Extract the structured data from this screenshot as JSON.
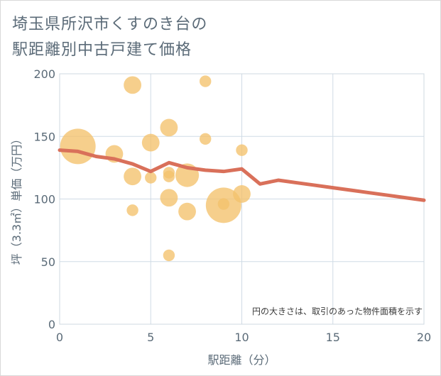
{
  "title": {
    "line1": "埼玉県所沢市くすのき台の",
    "line2": "駅距離別中古戸建て価格"
  },
  "note": "円の大きさは、取引のあった物件面積を示す",
  "colors": {
    "bubble": "#f3c26b",
    "line": "#d9705a",
    "grid": "#d0dbe5",
    "text": "#5b6b78"
  },
  "chart_data": {
    "type": "scatter",
    "xlabel": "駅距離（分）",
    "ylabel": "坪（3.3㎡）単価（万円）",
    "xlim": [
      0,
      20
    ],
    "ylim": [
      0,
      200
    ],
    "xticks": [
      0,
      5,
      10,
      15,
      20
    ],
    "yticks": [
      0,
      50,
      100,
      150,
      200
    ],
    "grid": true,
    "bubbles": [
      {
        "x": 1,
        "y": 142,
        "size": 5
      },
      {
        "x": 3,
        "y": 136,
        "size": 2
      },
      {
        "x": 4,
        "y": 191,
        "size": 2
      },
      {
        "x": 4,
        "y": 118,
        "size": 2
      },
      {
        "x": 4,
        "y": 91,
        "size": 1
      },
      {
        "x": 5,
        "y": 145,
        "size": 2
      },
      {
        "x": 5,
        "y": 117,
        "size": 1
      },
      {
        "x": 6,
        "y": 157,
        "size": 2
      },
      {
        "x": 6,
        "y": 121,
        "size": 1
      },
      {
        "x": 6,
        "y": 118,
        "size": 1
      },
      {
        "x": 6,
        "y": 101,
        "size": 2
      },
      {
        "x": 6,
        "y": 55,
        "size": 1
      },
      {
        "x": 7,
        "y": 119,
        "size": 3
      },
      {
        "x": 7,
        "y": 90,
        "size": 2
      },
      {
        "x": 8,
        "y": 194,
        "size": 1
      },
      {
        "x": 8,
        "y": 148,
        "size": 1
      },
      {
        "x": 9,
        "y": 95,
        "size": 5
      },
      {
        "x": 9,
        "y": 96,
        "size": 1
      },
      {
        "x": 10,
        "y": 139,
        "size": 1
      },
      {
        "x": 10,
        "y": 104,
        "size": 2
      }
    ],
    "trend": {
      "x": [
        0,
        1,
        2,
        3,
        4,
        5,
        6,
        7,
        8,
        9,
        10,
        11,
        12,
        13,
        14,
        15,
        16,
        17,
        18,
        19,
        20
      ],
      "y": [
        139,
        138,
        134,
        132,
        128,
        122,
        129,
        125,
        123,
        122,
        124,
        112,
        115,
        113,
        111,
        109,
        107,
        105,
        103,
        101,
        99
      ]
    }
  }
}
